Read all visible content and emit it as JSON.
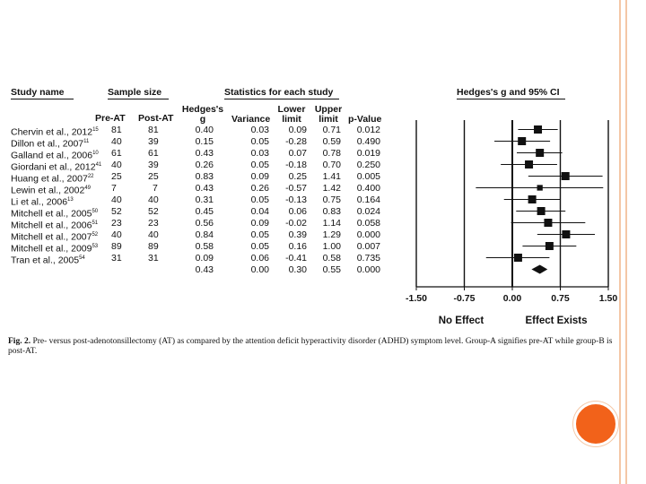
{
  "figure_caption_label": "Fig. 2.",
  "figure_caption": "Pre- versus post-adenotonsillectomy (AT) as compared by the attention deficit hyperactivity disorder (ADHD) symptom level. Group-A signifies pre-AT while group-B is post-AT.",
  "headers": {
    "study_name": "Study name",
    "sample_size": "Sample size",
    "statistics": "Statistics for each study",
    "plot_title": "Hedges's g and 95% CI",
    "pre_at": "Pre-AT",
    "post_at": "Post-AT",
    "hedges_line1": "Hedges's",
    "hedges_line2": "g",
    "variance": "Variance",
    "lower_line1": "Lower",
    "lower_line2": "limit",
    "upper_line1": "Upper",
    "upper_line2": "limit",
    "pvalue": "p-Value"
  },
  "studies": [
    {
      "name": "Chervin et al., 2012",
      "ref": "15",
      "pre": "81",
      "post": "81",
      "g": "0.40",
      "variance": "0.03",
      "lower": "0.09",
      "upper": "0.71",
      "p": "0.012"
    },
    {
      "name": "Dillon et al., 2007",
      "ref": "11",
      "pre": "40",
      "post": "39",
      "g": "0.15",
      "variance": "0.05",
      "lower": "-0.28",
      "upper": "0.59",
      "p": "0.490"
    },
    {
      "name": "Galland et al., 2006",
      "ref": "10",
      "pre": "61",
      "post": "61",
      "g": "0.43",
      "variance": "0.03",
      "lower": "0.07",
      "upper": "0.78",
      "p": "0.019"
    },
    {
      "name": "Giordani et al., 2012",
      "ref": "41",
      "pre": "40",
      "post": "39",
      "g": "0.26",
      "variance": "0.05",
      "lower": "-0.18",
      "upper": "0.70",
      "p": "0.250"
    },
    {
      "name": "Huang et al., 2007",
      "ref": "22",
      "pre": "25",
      "post": "25",
      "g": "0.83",
      "variance": "0.09",
      "lower": "0.25",
      "upper": "1.41",
      "p": "0.005"
    },
    {
      "name": "Lewin et al., 2002",
      "ref": "49",
      "pre": "7",
      "post": "7",
      "g": "0.43",
      "variance": "0.26",
      "lower": "-0.57",
      "upper": "1.42",
      "p": "0.400"
    },
    {
      "name": "Li et al., 2006",
      "ref": "13",
      "pre": "40",
      "post": "40",
      "g": "0.31",
      "variance": "0.05",
      "lower": "-0.13",
      "upper": "0.75",
      "p": "0.164"
    },
    {
      "name": "Mitchell et al., 2005",
      "ref": "50",
      "pre": "52",
      "post": "52",
      "g": "0.45",
      "variance": "0.04",
      "lower": "0.06",
      "upper": "0.83",
      "p": "0.024"
    },
    {
      "name": "Mitchell et al., 2006",
      "ref": "51",
      "pre": "23",
      "post": "23",
      "g": "0.56",
      "variance": "0.09",
      "lower": "-0.02",
      "upper": "1.14",
      "p": "0.058"
    },
    {
      "name": "Mitchell et al., 2007",
      "ref": "52",
      "pre": "40",
      "post": "40",
      "g": "0.84",
      "variance": "0.05",
      "lower": "0.39",
      "upper": "1.29",
      "p": "0.000"
    },
    {
      "name": "Mitchell et al., 2009",
      "ref": "53",
      "pre": "89",
      "post": "89",
      "g": "0.58",
      "variance": "0.05",
      "lower": "0.16",
      "upper": "1.00",
      "p": "0.007"
    },
    {
      "name": "Tran et al., 2005",
      "ref": "54",
      "pre": "31",
      "post": "31",
      "g": "0.09",
      "variance": "0.06",
      "lower": "-0.41",
      "upper": "0.58",
      "p": "0.735"
    }
  ],
  "summary": {
    "g": "0.43",
    "variance": "0.00",
    "lower": "0.30",
    "upper": "0.55",
    "p": "0.000"
  },
  "chart_data": {
    "type": "forest",
    "title": "Hedges's g and 95% CI",
    "xlim": [
      -1.5,
      1.5
    ],
    "ticks": [
      -1.5,
      -0.75,
      0.0,
      0.75,
      1.5
    ],
    "tick_labels": [
      "-1.50",
      "-0.75",
      "0.00",
      "0.75",
      "1.50"
    ],
    "reference_lines": [
      -1.5,
      -0.75,
      0.0,
      0.75,
      1.5
    ],
    "left_label": "No Effect",
    "right_label": "Effect Exists",
    "points": [
      {
        "g": 0.4,
        "lower": 0.09,
        "upper": 0.71,
        "variance": 0.03
      },
      {
        "g": 0.15,
        "lower": -0.28,
        "upper": 0.59,
        "variance": 0.05
      },
      {
        "g": 0.43,
        "lower": 0.07,
        "upper": 0.78,
        "variance": 0.03
      },
      {
        "g": 0.26,
        "lower": -0.18,
        "upper": 0.7,
        "variance": 0.05
      },
      {
        "g": 0.83,
        "lower": 0.25,
        "upper": 1.41,
        "variance": 0.09
      },
      {
        "g": 0.43,
        "lower": -0.57,
        "upper": 1.42,
        "variance": 0.26
      },
      {
        "g": 0.31,
        "lower": -0.13,
        "upper": 0.75,
        "variance": 0.05
      },
      {
        "g": 0.45,
        "lower": 0.06,
        "upper": 0.83,
        "variance": 0.04
      },
      {
        "g": 0.56,
        "lower": -0.02,
        "upper": 1.14,
        "variance": 0.09
      },
      {
        "g": 0.84,
        "lower": 0.39,
        "upper": 1.29,
        "variance": 0.05
      },
      {
        "g": 0.58,
        "lower": 0.16,
        "upper": 1.0,
        "variance": 0.05
      },
      {
        "g": 0.09,
        "lower": -0.41,
        "upper": 0.58,
        "variance": 0.06
      }
    ],
    "summary": {
      "g": 0.43,
      "lower": 0.3,
      "upper": 0.55
    }
  },
  "colors": {
    "accent_dot": "#f2621a",
    "accent_line": "#f4c7a6",
    "ink": "#111111"
  }
}
